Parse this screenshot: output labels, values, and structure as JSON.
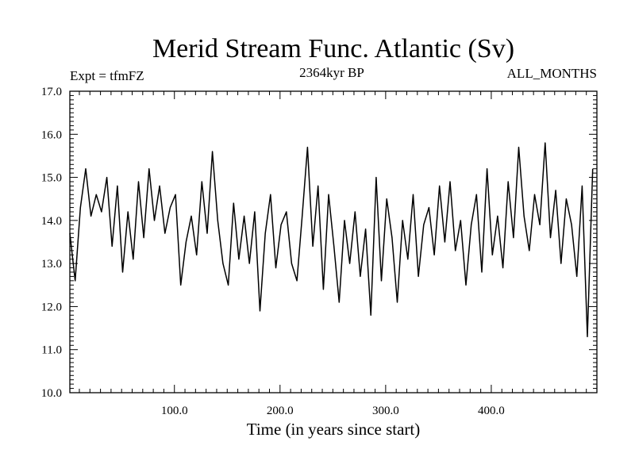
{
  "chart_data": {
    "type": "line",
    "title": "Merid Stream Func. Atlantic (Sv)",
    "subtitle_left": "Expt = tfmFZ",
    "subtitle_center": "2364kyr BP",
    "subtitle_right": "ALL_MONTHS",
    "xlabel": "Time (in years since start)",
    "ylabel": "",
    "xlim": [
      1,
      500
    ],
    "ylim": [
      10.0,
      17.0
    ],
    "x_ticks": [
      100,
      200,
      300,
      400
    ],
    "x_tick_labels": [
      "100.0",
      "200.0",
      "300.0",
      "400.0"
    ],
    "y_ticks": [
      10,
      11,
      12,
      13,
      14,
      15,
      16,
      17
    ],
    "y_tick_labels": [
      "10.0",
      "11.0",
      "12.0",
      "13.0",
      "14.0",
      "15.0",
      "16.0",
      "17.0"
    ],
    "series": [
      {
        "name": "Merid Stream Func. Atlantic",
        "x_start": 1,
        "x_step": 5,
        "values": [
          13.7,
          12.6,
          14.3,
          15.2,
          14.1,
          14.6,
          14.2,
          15.0,
          13.4,
          14.8,
          12.8,
          14.2,
          13.1,
          14.9,
          13.6,
          15.2,
          14.0,
          14.8,
          13.7,
          14.3,
          14.6,
          12.5,
          13.5,
          14.1,
          13.2,
          14.9,
          13.7,
          15.6,
          14.0,
          13.0,
          12.5,
          14.4,
          13.1,
          14.1,
          13.0,
          14.2,
          11.9,
          13.7,
          14.6,
          12.9,
          13.9,
          14.2,
          13.0,
          12.6,
          14.1,
          15.7,
          13.4,
          14.8,
          12.4,
          14.6,
          13.4,
          12.1,
          14.0,
          13.0,
          14.2,
          12.7,
          13.8,
          11.8,
          15.0,
          12.6,
          14.5,
          13.6,
          12.1,
          14.0,
          13.1,
          14.6,
          12.7,
          13.9,
          14.3,
          13.2,
          14.8,
          13.5,
          14.9,
          13.3,
          14.0,
          12.5,
          13.9,
          14.6,
          12.8,
          15.2,
          13.2,
          14.1,
          12.9,
          14.9,
          13.6,
          15.7,
          14.1,
          13.3,
          14.6,
          13.9,
          15.8,
          13.6,
          14.7,
          13.0,
          14.5,
          13.9,
          12.7,
          14.8,
          11.3,
          15.2
        ]
      }
    ]
  }
}
